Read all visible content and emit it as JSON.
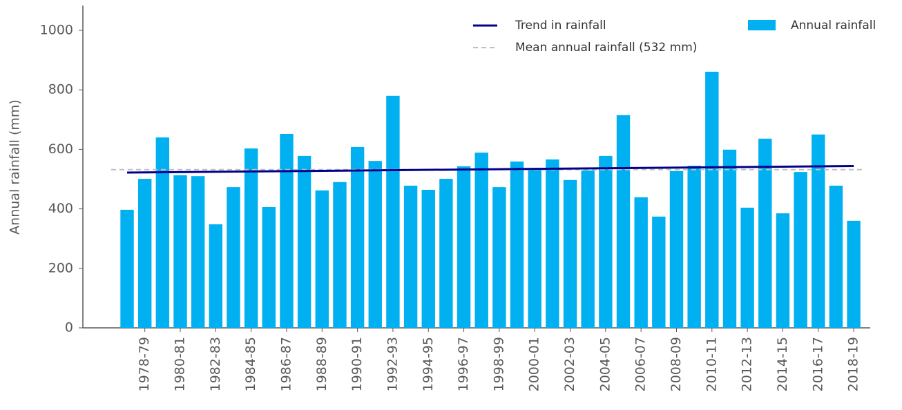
{
  "chart_data": {
    "type": "bar",
    "y_label": "Annual rainfall (mm)",
    "categories": [
      null,
      "1978-79",
      null,
      "1980-81",
      null,
      "1982-83",
      null,
      "1984-85",
      null,
      "1986-87",
      null,
      "1988-89",
      null,
      "1990-91",
      null,
      "1992-93",
      null,
      "1994-95",
      null,
      "1996-97",
      null,
      "1998-99",
      null,
      "2000-01",
      null,
      "2002-03",
      null,
      "2004-05",
      null,
      "2006-07",
      null,
      "2008-09",
      null,
      "2010-11",
      null,
      "2012-13",
      null,
      "2014-15",
      null,
      "2016-17",
      null,
      "2018-19"
    ],
    "series": [
      {
        "name": "Annual rainfall",
        "color": "#00b0f0",
        "values": [
          397,
          501,
          640,
          513,
          510,
          348,
          473,
          603,
          406,
          652,
          578,
          462,
          490,
          608,
          561,
          780,
          478,
          464,
          501,
          543,
          589,
          473,
          559,
          531,
          566,
          497,
          529,
          578,
          715,
          439,
          374,
          527,
          545,
          861,
          599,
          404,
          636,
          385,
          524,
          650,
          478,
          360
        ]
      }
    ],
    "trend": {
      "name": "Trend in rainfall",
      "color": "#00008b",
      "start": 522,
      "end": 544
    },
    "mean": {
      "name": "Mean annual rainfall (532 mm)",
      "color": "#bfbfbf",
      "value": 532
    },
    "ylim": [
      0,
      1080
    ],
    "yticks": [
      0,
      200,
      400,
      600,
      800,
      1000
    ]
  }
}
